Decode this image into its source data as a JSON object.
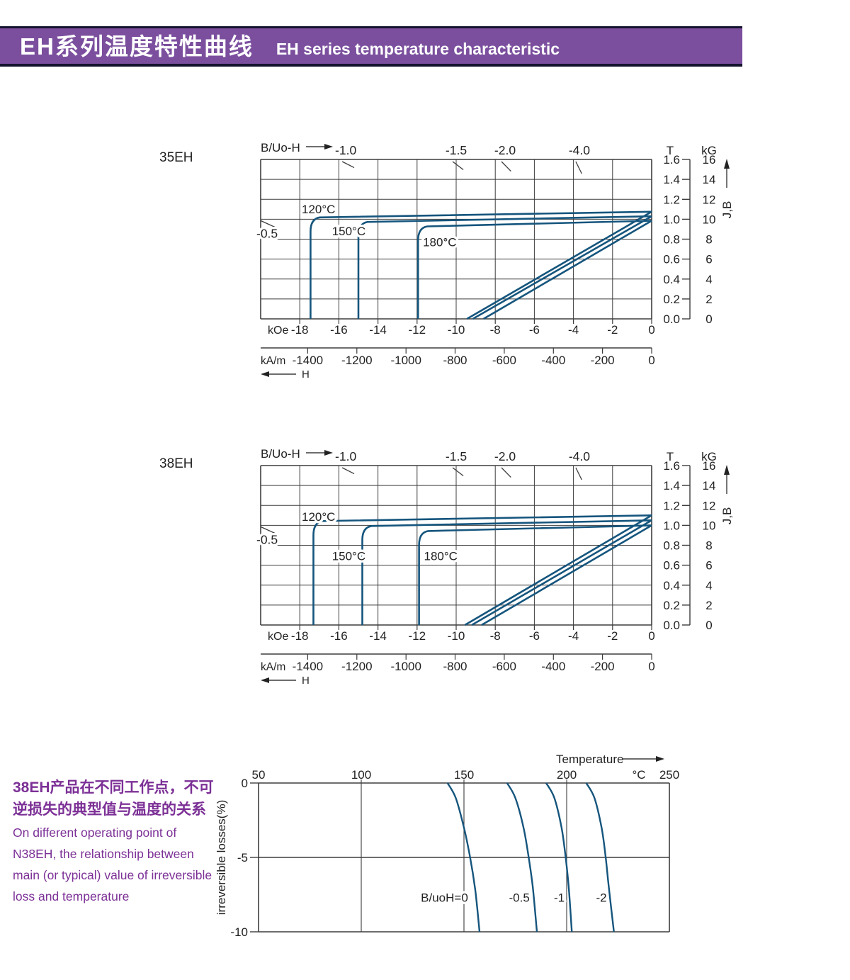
{
  "header": {
    "title_zh": "EH系列温度特性曲线",
    "title_en": "EH  series temperature characteristic"
  },
  "colors": {
    "banner_bg": "#7b4f9e",
    "banner_border": "#15142f",
    "curve": "#15557d",
    "grid": "#3d3d3d",
    "text": "#222222",
    "purple_text": "#7c3096"
  },
  "note": {
    "zh": "38EH产品在不同工作点，不可\n逆损失的典型值与温度的关系",
    "en": "On different operating point of\nN38EH,  the relationship between\nmain (or typical) value of irreversible\nloss and temperature"
  },
  "chart_data": [
    {
      "type": "line",
      "title": "35EH",
      "plot_header": "B/Uo-H",
      "x_axis": {
        "arrow_label": "H",
        "unit_primary": "kOe",
        "ticks_primary": [
          -18,
          -16,
          -14,
          -12,
          -10,
          -8,
          -6,
          -4,
          -2,
          0
        ],
        "unit_secondary": "kA/m",
        "ticks_secondary": [
          -1400,
          -1200,
          -1000,
          -800,
          -600,
          -400,
          -200,
          0
        ],
        "range_kOe": [
          -20,
          0
        ],
        "grid_step_kOe": 2
      },
      "y_axis": {
        "arrow_label": "J,B",
        "unit_left": "T",
        "ticks_left": [
          "1.6",
          "1.4",
          "1.2",
          "1.0",
          "0.8",
          "0.6",
          "0.4",
          "0.2",
          "0.0"
        ],
        "unit_right": "kG",
        "ticks_right": [
          "16",
          "14",
          "12",
          "10",
          "8",
          "6",
          "4",
          "2",
          "0"
        ],
        "range_T": [
          0,
          1.6
        ],
        "grid_step_T": 0.2
      },
      "load_lines": {
        "top": [
          {
            "label": "-1.0",
            "slope": 1.0,
            "exit_kOe": -15.65
          },
          {
            "label": "-1.5",
            "slope": 1.5,
            "exit_kOe": -10.0
          },
          {
            "label": "-2.0",
            "slope": 2.0,
            "exit_kOe": -7.5
          },
          {
            "label": "-4.0",
            "slope": 4.0,
            "exit_kOe": -3.7
          }
        ],
        "left": {
          "label": "-0.5",
          "slope": 0.5,
          "exit_T": 1.0
        }
      },
      "series": [
        {
          "name": "120°C",
          "Br_T": 1.075,
          "HcJ_kOe": -17.45,
          "B_zero_kOe": -9.45,
          "label_at": [
            -17.9,
            1.06
          ]
        },
        {
          "name": "150°C",
          "Br_T": 1.03,
          "HcJ_kOe": -15.0,
          "B_zero_kOe": -9.15,
          "label_at": [
            -16.35,
            0.84
          ]
        },
        {
          "name": "180°C",
          "Br_T": 0.985,
          "HcJ_kOe": -11.95,
          "B_zero_kOe": -8.6,
          "label_at": [
            -11.7,
            0.73
          ]
        }
      ]
    },
    {
      "type": "line",
      "title": "38EH",
      "plot_header": "B/Uo-H",
      "x_axis": {
        "arrow_label": "H",
        "unit_primary": "kOe",
        "ticks_primary": [
          -18,
          -16,
          -14,
          -12,
          -10,
          -8,
          -6,
          -4,
          -2,
          0
        ],
        "unit_secondary": "kA/m",
        "ticks_secondary": [
          -1400,
          -1200,
          -1000,
          -800,
          -600,
          -400,
          -200,
          0
        ],
        "range_kOe": [
          -20,
          0
        ],
        "grid_step_kOe": 2
      },
      "y_axis": {
        "arrow_label": "J,B",
        "unit_left": "T",
        "ticks_left": [
          "1.6",
          "1.4",
          "1.2",
          "1.0",
          "0.8",
          "0.6",
          "0.4",
          "0.2",
          "0.0"
        ],
        "unit_right": "kG",
        "ticks_right": [
          "16",
          "14",
          "12",
          "10",
          "8",
          "6",
          "4",
          "2",
          "0"
        ],
        "range_T": [
          0,
          1.6
        ],
        "grid_step_T": 0.2
      },
      "load_lines": {
        "top": [
          {
            "label": "-1.0",
            "slope": 1.0,
            "exit_kOe": -15.65
          },
          {
            "label": "-1.5",
            "slope": 1.5,
            "exit_kOe": -10.0
          },
          {
            "label": "-2.0",
            "slope": 2.0,
            "exit_kOe": -7.5
          },
          {
            "label": "-4.0",
            "slope": 4.0,
            "exit_kOe": -3.7
          }
        ],
        "left": {
          "label": "-0.5",
          "slope": 0.5,
          "exit_T": 1.0
        }
      },
      "series": [
        {
          "name": "120°C",
          "Br_T": 1.1,
          "HcJ_kOe": -17.3,
          "B_zero_kOe": -9.55,
          "label_at": [
            -17.9,
            1.045
          ]
        },
        {
          "name": "150°C",
          "Br_T": 1.05,
          "HcJ_kOe": -14.8,
          "B_zero_kOe": -9.2,
          "label_at": [
            -16.35,
            0.65
          ]
        },
        {
          "name": "180°C",
          "Br_T": 1.0,
          "HcJ_kOe": -11.9,
          "B_zero_kOe": -8.7,
          "label_at": [
            -11.65,
            0.65
          ]
        }
      ]
    },
    {
      "type": "line",
      "title": "irreversible loss vs temperature",
      "x_axis": {
        "label": "Temperature",
        "unit": "°C",
        "ticks": [
          50,
          100,
          150,
          200,
          250
        ],
        "range": [
          50,
          250
        ],
        "gridlines_at": [
          100,
          150,
          200
        ]
      },
      "y_axis": {
        "label": "irreversible  losses(%)",
        "ticks": [
          "0",
          "-5",
          "-10"
        ],
        "range": [
          -10,
          0
        ]
      },
      "series": [
        {
          "name": "B/uoH=0",
          "points": [
            [
              142,
              0
            ],
            [
              146,
              -1
            ],
            [
              150,
              -3
            ],
            [
              153,
              -5
            ],
            [
              155.5,
              -7.2
            ],
            [
              157.6,
              -10
            ]
          ],
          "label_end_T": 152,
          "label_loss": -7.7
        },
        {
          "name": "-0.5",
          "points": [
            [
              171,
              0
            ],
            [
              175,
              -1
            ],
            [
              179,
              -3
            ],
            [
              181.5,
              -5
            ],
            [
              183.5,
              -7
            ],
            [
              185.5,
              -10
            ]
          ],
          "label_end_T": 182,
          "label_loss": -7.7
        },
        {
          "name": "-1",
          "points": [
            [
              190,
              0
            ],
            [
              194,
              -1
            ],
            [
              197.5,
              -3
            ],
            [
              199.5,
              -5
            ],
            [
              201,
              -7
            ],
            [
              202.5,
              -10
            ]
          ],
          "label_end_T": 199,
          "label_loss": -7.7
        },
        {
          "name": "-2",
          "points": [
            [
              209.5,
              0
            ],
            [
              213.5,
              -1
            ],
            [
              217,
              -3
            ],
            [
              219,
              -5
            ],
            [
              220.5,
              -7
            ],
            [
              223,
              -10
            ]
          ],
          "label_end_T": 219.5,
          "label_loss": -7.7
        }
      ]
    }
  ]
}
